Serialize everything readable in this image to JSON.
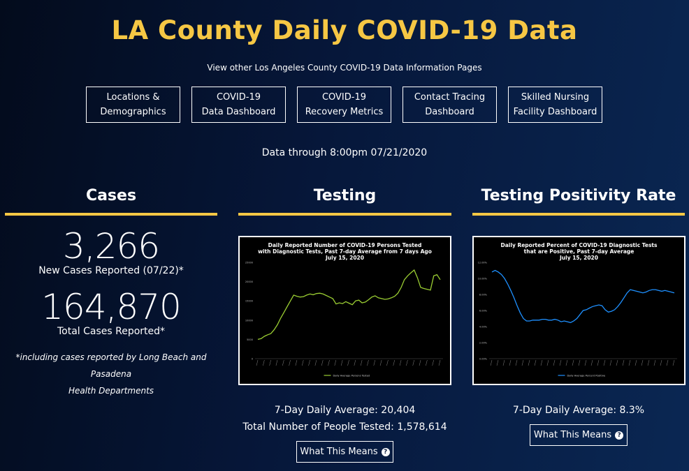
{
  "header": {
    "title": "LA County Daily COVID-19 Data",
    "subtitle": "View other Los Angeles County COVID-19 Data Information Pages",
    "nav": [
      "Locations &\nDemographics",
      "COVID-19\nData Dashboard",
      "COVID-19\nRecovery Metrics",
      "Contact Tracing\nDashboard",
      "Skilled Nursing\nFacility Dashboard"
    ],
    "data_through": "Data through 8:00pm 07/21/2020"
  },
  "cases": {
    "heading": "Cases",
    "new_cases": "3,266",
    "new_cases_label": "New Cases Reported (07/22)*",
    "total_cases": "164,870",
    "total_cases_label": "Total Cases Reported*",
    "footnote_line1": "*including cases reported by Long Beach and Pasadena",
    "footnote_line2": "Health Departments"
  },
  "testing": {
    "heading": "Testing",
    "avg": "7-Day Daily Average: 20,404",
    "total": "Total Number of People Tested: 1,578,614",
    "button": "What This Means",
    "button_icon": "question-circle-icon"
  },
  "positivity": {
    "heading": "Testing Positivity Rate",
    "avg": "7-Day Daily Average: 8.3%",
    "button": "What This Means",
    "button_icon": "question-circle-icon"
  },
  "colors": {
    "accent": "#f6c744",
    "testing_line": "#9acd32",
    "positivity_line": "#1e90ff",
    "chart_bg": "#000000"
  },
  "chart_data": [
    {
      "type": "line",
      "title_lines": [
        "Daily Reported Number of COVID-19 Persons Tested",
        "with Diagnostic Tests, Past 7-day Average from 7 days Ago",
        "July 15, 2020"
      ],
      "ylim": [
        0,
        25000
      ],
      "yticks": [
        "0",
        "5000",
        "10000",
        "15000",
        "20000",
        "25000"
      ],
      "series": [
        {
          "name": "Daily Average Persons Tested",
          "values": [
            5000,
            5200,
            5800,
            6200,
            6500,
            7500,
            8800,
            10500,
            12000,
            13500,
            15000,
            16500,
            16200,
            16000,
            16100,
            16500,
            16800,
            16600,
            16900,
            17000,
            16800,
            16400,
            16000,
            15600,
            14200,
            14500,
            14300,
            14800,
            14400,
            14000,
            15000,
            15200,
            14500,
            14700,
            15300,
            16000,
            16300,
            15800,
            15600,
            15400,
            15500,
            15800,
            16200,
            17000,
            18500,
            20500,
            21500,
            22300,
            23000,
            21000,
            18500,
            18200,
            18000,
            17800,
            21500,
            21800,
            20500
          ]
        }
      ]
    },
    {
      "type": "line",
      "title_lines": [
        "Daily Reported Percent of COVID-19 Diagnostic Tests",
        "that are Positive, Past 7-day Average",
        "July 15, 2020"
      ],
      "ylim": [
        0,
        12
      ],
      "yticks": [
        "0.00%",
        "2.00%",
        "4.00%",
        "6.00%",
        "8.00%",
        "10.00%",
        "12.00%"
      ],
      "series": [
        {
          "name": "Daily Average Percent Positive",
          "values": [
            10.8,
            11.0,
            10.8,
            10.5,
            10.0,
            9.3,
            8.5,
            7.6,
            6.6,
            5.7,
            5.0,
            4.7,
            4.7,
            4.8,
            4.8,
            4.8,
            4.9,
            4.9,
            4.8,
            4.8,
            4.9,
            4.8,
            4.6,
            4.7,
            4.6,
            4.5,
            4.7,
            5.0,
            5.5,
            6.0,
            6.1,
            6.3,
            6.5,
            6.6,
            6.7,
            6.6,
            6.1,
            5.8,
            5.9,
            6.1,
            6.5,
            7.0,
            7.6,
            8.2,
            8.6,
            8.5,
            8.4,
            8.3,
            8.2,
            8.3,
            8.5,
            8.6,
            8.6,
            8.5,
            8.4,
            8.5,
            8.4,
            8.3,
            8.2
          ]
        }
      ]
    }
  ]
}
